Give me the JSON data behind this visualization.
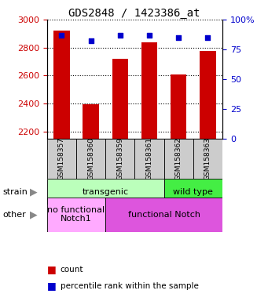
{
  "title": "GDS2848 / 1423386_at",
  "samples": [
    "GSM158357",
    "GSM158360",
    "GSM158359",
    "GSM158361",
    "GSM158362",
    "GSM158363"
  ],
  "counts": [
    2920,
    2395,
    2720,
    2840,
    2605,
    2775
  ],
  "percentiles": [
    87,
    82,
    87,
    87,
    85,
    85
  ],
  "ylim_left": [
    2150,
    3000
  ],
  "ylim_right": [
    0,
    100
  ],
  "yticks_left": [
    2200,
    2400,
    2600,
    2800,
    3000
  ],
  "yticks_right": [
    0,
    25,
    50,
    75,
    100
  ],
  "ytick_right_labels": [
    "0",
    "25",
    "50",
    "75",
    "100%"
  ],
  "bar_color": "#cc0000",
  "dot_color": "#0000cc",
  "strain_groups": [
    {
      "label": "transgenic",
      "cols": [
        0,
        1,
        2,
        3
      ],
      "color": "#bbffbb"
    },
    {
      "label": "wild type",
      "cols": [
        4,
        5
      ],
      "color": "#44ee44"
    }
  ],
  "other_groups": [
    {
      "label": "no functional\nNotch1",
      "cols": [
        0,
        1
      ],
      "color": "#ffaaff"
    },
    {
      "label": "functional Notch",
      "cols": [
        2,
        3,
        4,
        5
      ],
      "color": "#dd55dd"
    }
  ],
  "legend_count_label": "count",
  "legend_pct_label": "percentile rank within the sample",
  "strain_label": "strain",
  "other_label": "other",
  "background_color": "#ffffff",
  "tick_label_color_left": "#cc0000",
  "tick_label_color_right": "#0000cc",
  "label_cell_color": "#cccccc"
}
